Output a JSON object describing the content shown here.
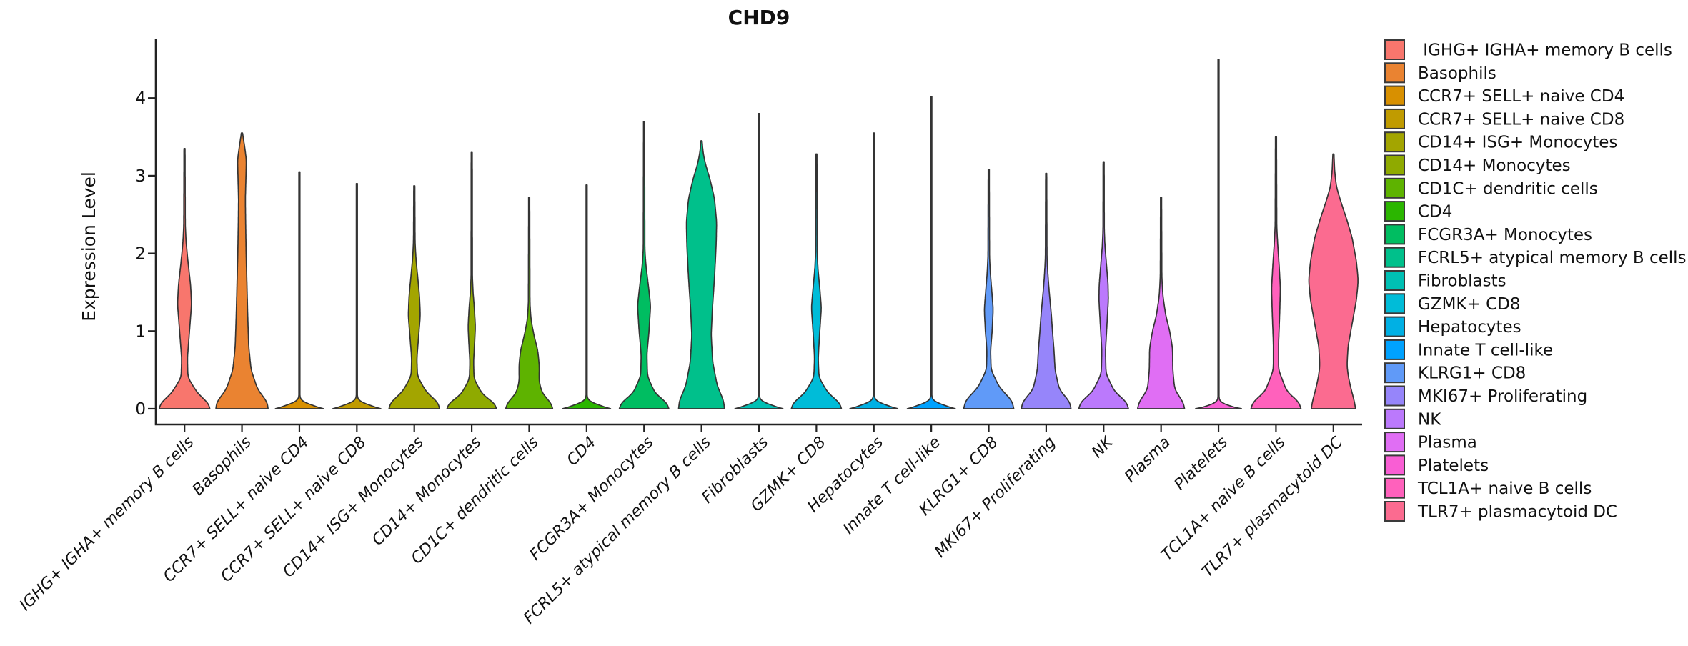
{
  "title": "CHD9",
  "chart_data": {
    "type": "violin",
    "title": "CHD9",
    "xlabel": "",
    "ylabel": "Expression Level",
    "ylim": [
      0,
      4.76
    ],
    "yticks": [
      0,
      1,
      2,
      3,
      4
    ],
    "grid": false,
    "legend_position": "right",
    "x_tick_style": "italic rotated 45deg",
    "colors": {
      "axis": "#222222",
      "outline": "#343434",
      "background": "#ffffff"
    },
    "categories": [
      {
        "name": "IGHG+ IGHA+ memory B cells",
        "legend_label": " IGHG+ IGHA+ memory B cells",
        "color": "#F8766D",
        "max_expression": 3.35,
        "profile": [
          [
            0,
            0.97
          ],
          [
            0.06,
            0.95
          ],
          [
            0.2,
            0.5
          ],
          [
            0.4,
            0.13
          ],
          [
            0.65,
            0.11
          ],
          [
            1.0,
            0.19
          ],
          [
            1.35,
            0.27
          ],
          [
            1.6,
            0.23
          ],
          [
            1.9,
            0.13
          ],
          [
            2.15,
            0.06
          ],
          [
            2.35,
            0.03
          ],
          [
            3.35,
            0.02
          ]
        ]
      },
      {
        "name": "Basophils",
        "legend_label": "Basophils",
        "color": "#EA8331",
        "max_expression": 3.55,
        "profile": [
          [
            0,
            1.0
          ],
          [
            0.08,
            0.98
          ],
          [
            0.25,
            0.6
          ],
          [
            0.5,
            0.35
          ],
          [
            0.8,
            0.26
          ],
          [
            1.2,
            0.22
          ],
          [
            1.6,
            0.19
          ],
          [
            2.0,
            0.16
          ],
          [
            2.4,
            0.14
          ],
          [
            2.7,
            0.13
          ],
          [
            2.95,
            0.15
          ],
          [
            3.2,
            0.17
          ],
          [
            3.38,
            0.1
          ],
          [
            3.55,
            0.02
          ]
        ]
      },
      {
        "name": "CCR7+ SELL+ naive CD4",
        "legend_label": "CCR7+ SELL+ naive CD4",
        "color": "#D89000",
        "max_expression": 3.05,
        "profile": [
          [
            0,
            0.92
          ],
          [
            0.03,
            0.8
          ],
          [
            0.07,
            0.08
          ],
          [
            0.12,
            0.02
          ],
          [
            3.05,
            0.02
          ]
        ]
      },
      {
        "name": "CCR7+ SELL+ naive CD8",
        "legend_label": "CCR7+ SELL+ naive CD8",
        "color": "#C09B00",
        "max_expression": 2.9,
        "profile": [
          [
            0,
            0.92
          ],
          [
            0.03,
            0.8
          ],
          [
            0.07,
            0.08
          ],
          [
            0.12,
            0.02
          ],
          [
            2.9,
            0.02
          ]
        ]
      },
      {
        "name": "CD14+ ISG+ Monocytes",
        "legend_label": "CD14+ ISG+ Monocytes",
        "color": "#A3A500",
        "max_expression": 2.87,
        "profile": [
          [
            0,
            0.97
          ],
          [
            0.07,
            0.94
          ],
          [
            0.22,
            0.45
          ],
          [
            0.42,
            0.12
          ],
          [
            0.65,
            0.1
          ],
          [
            0.95,
            0.17
          ],
          [
            1.2,
            0.23
          ],
          [
            1.45,
            0.2
          ],
          [
            1.7,
            0.13
          ],
          [
            1.95,
            0.06
          ],
          [
            2.16,
            0.03
          ],
          [
            2.87,
            0.02
          ]
        ]
      },
      {
        "name": "CD14+ Monocytes",
        "legend_label": "CD14+ Monocytes",
        "color": "#8FAA00",
        "max_expression": 3.3,
        "profile": [
          [
            0,
            0.95
          ],
          [
            0.06,
            0.92
          ],
          [
            0.18,
            0.42
          ],
          [
            0.38,
            0.09
          ],
          [
            0.6,
            0.07
          ],
          [
            0.85,
            0.11
          ],
          [
            1.05,
            0.14
          ],
          [
            1.3,
            0.1
          ],
          [
            1.5,
            0.05
          ],
          [
            1.7,
            0.025
          ],
          [
            3.3,
            0.02
          ]
        ]
      },
      {
        "name": "CD1C+ dendritic cells",
        "legend_label": "CD1C+ dendritic cells",
        "color": "#5EB300",
        "max_expression": 2.72,
        "profile": [
          [
            0,
            0.9
          ],
          [
            0.06,
            0.87
          ],
          [
            0.2,
            0.5
          ],
          [
            0.35,
            0.38
          ],
          [
            0.55,
            0.39
          ],
          [
            0.75,
            0.33
          ],
          [
            0.95,
            0.18
          ],
          [
            1.15,
            0.07
          ],
          [
            1.35,
            0.03
          ],
          [
            2.72,
            0.02
          ]
        ]
      },
      {
        "name": "CD4",
        "legend_label": "CD4",
        "color": "#2BB600",
        "max_expression": 2.88,
        "profile": [
          [
            0,
            0.92
          ],
          [
            0.03,
            0.8
          ],
          [
            0.07,
            0.08
          ],
          [
            0.12,
            0.02
          ],
          [
            2.88,
            0.02
          ]
        ]
      },
      {
        "name": "FCGR3A+ Monocytes",
        "legend_label": "FCGR3A+ Monocytes",
        "color": "#00BD61",
        "max_expression": 3.7,
        "profile": [
          [
            0,
            0.95
          ],
          [
            0.07,
            0.9
          ],
          [
            0.2,
            0.42
          ],
          [
            0.42,
            0.13
          ],
          [
            0.7,
            0.11
          ],
          [
            1.0,
            0.19
          ],
          [
            1.33,
            0.25
          ],
          [
            1.6,
            0.16
          ],
          [
            1.85,
            0.07
          ],
          [
            2.05,
            0.03
          ],
          [
            3.7,
            0.02
          ]
        ]
      },
      {
        "name": "FCRL5+ atypical memory B cells",
        "legend_label": "FCRL5+ atypical memory B cells",
        "color": "#00C08B",
        "max_expression": 3.45,
        "profile": [
          [
            0,
            0.88
          ],
          [
            0.1,
            0.85
          ],
          [
            0.3,
            0.6
          ],
          [
            0.6,
            0.43
          ],
          [
            0.95,
            0.37
          ],
          [
            1.3,
            0.42
          ],
          [
            1.7,
            0.5
          ],
          [
            2.1,
            0.56
          ],
          [
            2.4,
            0.58
          ],
          [
            2.7,
            0.5
          ],
          [
            2.95,
            0.33
          ],
          [
            3.15,
            0.15
          ],
          [
            3.3,
            0.06
          ],
          [
            3.45,
            0.02
          ]
        ]
      },
      {
        "name": "Fibroblasts",
        "legend_label": "Fibroblasts",
        "color": "#00C0B4",
        "max_expression": 3.8,
        "profile": [
          [
            0,
            0.92
          ],
          [
            0.03,
            0.8
          ],
          [
            0.07,
            0.08
          ],
          [
            0.12,
            0.02
          ],
          [
            3.8,
            0.02
          ]
        ]
      },
      {
        "name": "GZMK+ CD8",
        "legend_label": "GZMK+ CD8",
        "color": "#00BCD8",
        "max_expression": 3.28,
        "profile": [
          [
            0,
            0.96
          ],
          [
            0.07,
            0.92
          ],
          [
            0.2,
            0.45
          ],
          [
            0.4,
            0.1
          ],
          [
            0.65,
            0.07
          ],
          [
            0.95,
            0.12
          ],
          [
            1.3,
            0.19
          ],
          [
            1.55,
            0.13
          ],
          [
            1.8,
            0.06
          ],
          [
            2.0,
            0.03
          ],
          [
            3.28,
            0.02
          ]
        ]
      },
      {
        "name": "Hepatocytes",
        "legend_label": "Hepatocytes",
        "color": "#00B0E4",
        "max_expression": 3.55,
        "profile": [
          [
            0,
            0.92
          ],
          [
            0.03,
            0.8
          ],
          [
            0.07,
            0.08
          ],
          [
            0.12,
            0.02
          ],
          [
            3.55,
            0.02
          ]
        ]
      },
      {
        "name": "Innate T cell-like",
        "legend_label": "Innate T cell-like",
        "color": "#00A2FF",
        "max_expression": 4.02,
        "profile": [
          [
            0,
            0.92
          ],
          [
            0.03,
            0.8
          ],
          [
            0.07,
            0.08
          ],
          [
            0.12,
            0.02
          ],
          [
            4.02,
            0.02
          ]
        ]
      },
      {
        "name": "KLRG1+ CD8",
        "legend_label": "KLRG1+ CD8",
        "color": "#609AF8",
        "max_expression": 3.08,
        "profile": [
          [
            0,
            0.96
          ],
          [
            0.1,
            0.9
          ],
          [
            0.28,
            0.4
          ],
          [
            0.5,
            0.09
          ],
          [
            0.75,
            0.07
          ],
          [
            1.0,
            0.13
          ],
          [
            1.28,
            0.17
          ],
          [
            1.5,
            0.12
          ],
          [
            1.75,
            0.06
          ],
          [
            1.95,
            0.03
          ],
          [
            3.08,
            0.02
          ]
        ]
      },
      {
        "name": "MKI67+ Proliferating",
        "legend_label": "MKI67+ Proliferating",
        "color": "#9685FA",
        "max_expression": 3.03,
        "profile": [
          [
            0,
            0.95
          ],
          [
            0.08,
            0.92
          ],
          [
            0.25,
            0.5
          ],
          [
            0.5,
            0.34
          ],
          [
            0.75,
            0.3
          ],
          [
            1.0,
            0.24
          ],
          [
            1.2,
            0.2
          ],
          [
            1.45,
            0.13
          ],
          [
            1.7,
            0.07
          ],
          [
            1.95,
            0.03
          ],
          [
            3.03,
            0.02
          ]
        ]
      },
      {
        "name": "NK",
        "legend_label": "NK",
        "color": "#BB79FC",
        "max_expression": 3.18,
        "profile": [
          [
            0,
            0.95
          ],
          [
            0.08,
            0.9
          ],
          [
            0.22,
            0.42
          ],
          [
            0.45,
            0.09
          ],
          [
            0.75,
            0.07
          ],
          [
            1.1,
            0.13
          ],
          [
            1.4,
            0.18
          ],
          [
            1.6,
            0.17
          ],
          [
            1.85,
            0.11
          ],
          [
            2.1,
            0.05
          ],
          [
            2.3,
            0.025
          ],
          [
            3.18,
            0.02
          ]
        ]
      },
      {
        "name": "Plasma",
        "legend_label": "Plasma",
        "color": "#E06EF4",
        "max_expression": 2.72,
        "profile": [
          [
            0,
            0.9
          ],
          [
            0.07,
            0.87
          ],
          [
            0.25,
            0.52
          ],
          [
            0.5,
            0.45
          ],
          [
            0.78,
            0.44
          ],
          [
            1.0,
            0.33
          ],
          [
            1.2,
            0.18
          ],
          [
            1.45,
            0.07
          ],
          [
            1.7,
            0.03
          ],
          [
            2.72,
            0.02
          ]
        ]
      },
      {
        "name": "Platelets",
        "legend_label": "Platelets",
        "color": "#F95ED4",
        "max_expression": 4.5,
        "profile": [
          [
            0,
            0.88
          ],
          [
            0.02,
            0.7
          ],
          [
            0.05,
            0.06
          ],
          [
            0.1,
            0.02
          ],
          [
            4.5,
            0.02
          ]
        ]
      },
      {
        "name": "TCL1A+ naive B cells",
        "legend_label": "TCL1A+ naive B cells",
        "color": "#FF61BC",
        "max_expression": 3.5,
        "profile": [
          [
            0,
            0.96
          ],
          [
            0.08,
            0.9
          ],
          [
            0.22,
            0.42
          ],
          [
            0.5,
            0.1
          ],
          [
            0.85,
            0.1
          ],
          [
            1.2,
            0.14
          ],
          [
            1.55,
            0.17
          ],
          [
            1.85,
            0.12
          ],
          [
            2.15,
            0.06
          ],
          [
            2.35,
            0.03
          ],
          [
            3.5,
            0.02
          ]
        ]
      },
      {
        "name": "TLR7+ plasmacytoid DC",
        "legend_label": "TLR7+ plasmacytoid DC",
        "color": "#FB6B90",
        "max_expression": 3.28,
        "profile": [
          [
            0,
            0.85
          ],
          [
            0.1,
            0.8
          ],
          [
            0.25,
            0.68
          ],
          [
            0.4,
            0.58
          ],
          [
            0.55,
            0.52
          ],
          [
            0.8,
            0.56
          ],
          [
            1.1,
            0.72
          ],
          [
            1.4,
            0.88
          ],
          [
            1.65,
            0.95
          ],
          [
            1.9,
            0.88
          ],
          [
            2.2,
            0.72
          ],
          [
            2.45,
            0.5
          ],
          [
            2.65,
            0.3
          ],
          [
            2.85,
            0.12
          ],
          [
            3.05,
            0.05
          ],
          [
            3.28,
            0.02
          ]
        ]
      }
    ]
  }
}
